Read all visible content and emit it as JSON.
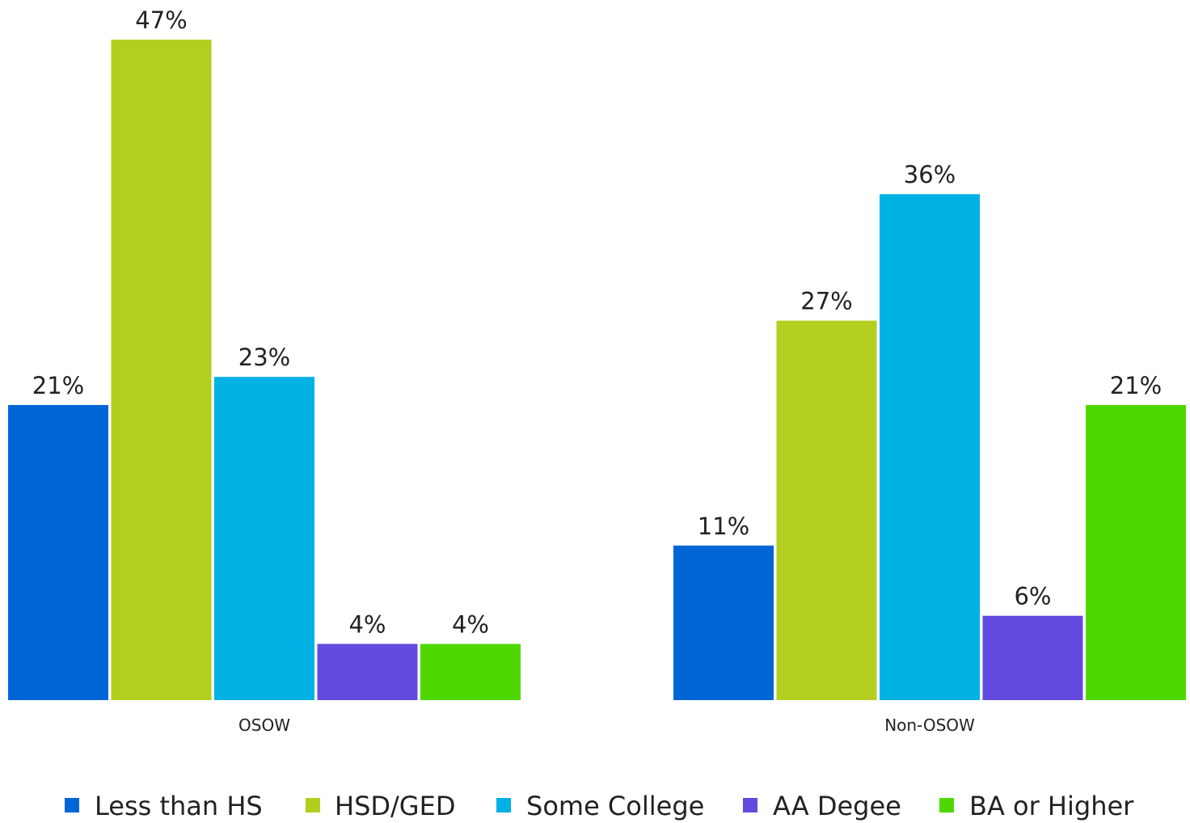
{
  "chart_data": {
    "type": "bar",
    "categories": [
      "OSOW",
      "Non-OSOW"
    ],
    "series": [
      {
        "name": "Less than HS",
        "values": [
          21,
          11
        ],
        "labels": [
          "21%",
          "11%"
        ],
        "color": "#0066D6"
      },
      {
        "name": "HSD/GED",
        "values": [
          47,
          27
        ],
        "labels": [
          "47%",
          "27%"
        ],
        "color": "#B3CE1E"
      },
      {
        "name": "Some College",
        "values": [
          23,
          36
        ],
        "labels": [
          "23%",
          "36%"
        ],
        "color": "#00B2E3"
      },
      {
        "name": "AA Degee",
        "values": [
          4,
          6
        ],
        "labels": [
          "4%",
          "6%"
        ],
        "color": "#634ADF"
      },
      {
        "name": "BA or Higher",
        "values": [
          4,
          21
        ],
        "labels": [
          "4%",
          "21%"
        ],
        "color": "#4FD800"
      }
    ],
    "title": "",
    "xlabel": "",
    "ylabel": "",
    "ylim": [
      0,
      47
    ],
    "grid": false,
    "legend_position": "bottom"
  }
}
